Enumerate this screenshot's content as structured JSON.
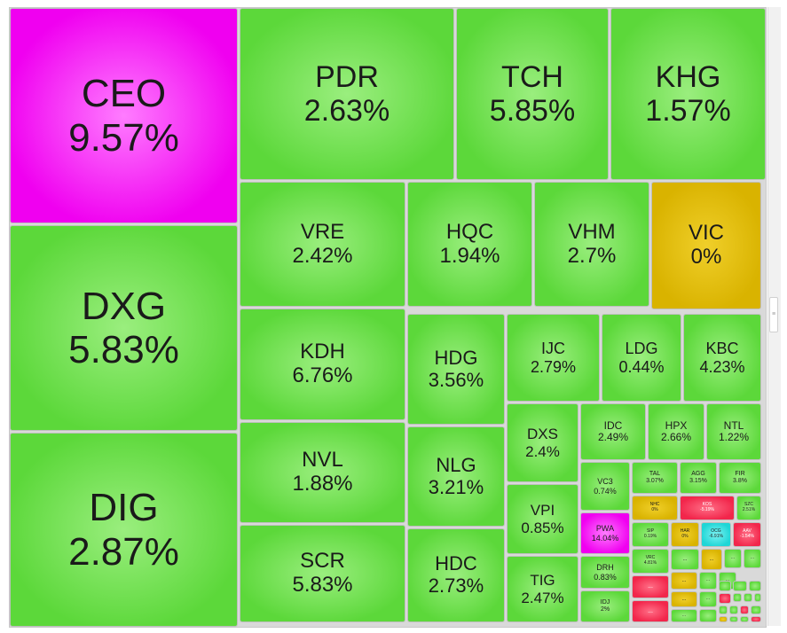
{
  "colors": {
    "up": "#5cd83a",
    "up_center": "#9aee7e",
    "ceiling": "#f000f0",
    "ceiling_center": "#ff7cff",
    "ref": "#d9b300",
    "ref_center": "#f0cf2a",
    "down": "#f2264b",
    "down_center": "#ff6e86",
    "floor": "#1fd6d6",
    "floor_center": "#7cf2f2"
  },
  "chart_data": {
    "type": "treemap",
    "tiles": [
      {
        "ticker": "CEO",
        "change": "9.57%",
        "value": 9.57,
        "status": "ceiling"
      },
      {
        "ticker": "DXG",
        "change": "5.83%",
        "value": 5.83,
        "status": "up"
      },
      {
        "ticker": "DIG",
        "change": "2.87%",
        "value": 2.87,
        "status": "up"
      },
      {
        "ticker": "PDR",
        "change": "2.63%",
        "value": 2.63,
        "status": "up"
      },
      {
        "ticker": "TCH",
        "change": "5.85%",
        "value": 5.85,
        "status": "up"
      },
      {
        "ticker": "KHG",
        "change": "1.57%",
        "value": 1.57,
        "status": "up"
      },
      {
        "ticker": "VRE",
        "change": "2.42%",
        "value": 2.42,
        "status": "up"
      },
      {
        "ticker": "HQC",
        "change": "1.94%",
        "value": 1.94,
        "status": "up"
      },
      {
        "ticker": "VHM",
        "change": "2.7%",
        "value": 2.7,
        "status": "up"
      },
      {
        "ticker": "VIC",
        "change": "0%",
        "value": 0,
        "status": "ref"
      },
      {
        "ticker": "KDH",
        "change": "6.76%",
        "value": 6.76,
        "status": "up"
      },
      {
        "ticker": "HDG",
        "change": "3.56%",
        "value": 3.56,
        "status": "up"
      },
      {
        "ticker": "IJC",
        "change": "2.79%",
        "value": 2.79,
        "status": "up"
      },
      {
        "ticker": "LDG",
        "change": "0.44%",
        "value": 0.44,
        "status": "up"
      },
      {
        "ticker": "KBC",
        "change": "4.23%",
        "value": 4.23,
        "status": "up"
      },
      {
        "ticker": "NVL",
        "change": "1.88%",
        "value": 1.88,
        "status": "up"
      },
      {
        "ticker": "NLG",
        "change": "3.21%",
        "value": 3.21,
        "status": "up"
      },
      {
        "ticker": "DXS",
        "change": "2.4%",
        "value": 2.4,
        "status": "up"
      },
      {
        "ticker": "IDC",
        "change": "2.49%",
        "value": 2.49,
        "status": "up"
      },
      {
        "ticker": "HPX",
        "change": "2.66%",
        "value": 2.66,
        "status": "up"
      },
      {
        "ticker": "NTL",
        "change": "1.22%",
        "value": 1.22,
        "status": "up"
      },
      {
        "ticker": "VC3",
        "change": "0.74%",
        "value": 0.74,
        "status": "up"
      },
      {
        "ticker": "TAL",
        "change": "3.07%",
        "value": 3.07,
        "status": "up"
      },
      {
        "ticker": "AGG",
        "change": "3.15%",
        "value": 3.15,
        "status": "up"
      },
      {
        "ticker": "FIR",
        "change": "3.8%",
        "value": 3.8,
        "status": "up"
      },
      {
        "ticker": "NHC",
        "change": "0%",
        "value": 0,
        "status": "ref"
      },
      {
        "ticker": "KOS",
        "change": "-5.19%",
        "value": -5.19,
        "status": "down"
      },
      {
        "ticker": "SZC",
        "change": "2.51%",
        "value": 2.51,
        "status": "up"
      },
      {
        "ticker": "SCR",
        "change": "5.83%",
        "value": 5.83,
        "status": "up"
      },
      {
        "ticker": "HDC",
        "change": "2.73%",
        "value": 2.73,
        "status": "up"
      },
      {
        "ticker": "VPI",
        "change": "0.85%",
        "value": 0.85,
        "status": "up"
      },
      {
        "ticker": "PWA",
        "change": "14.04%",
        "value": 14.04,
        "status": "ceiling"
      },
      {
        "ticker": "SIP",
        "change": "0.19%",
        "value": 0.19,
        "status": "up"
      },
      {
        "ticker": "HAR",
        "change": "0%",
        "value": 0,
        "status": "ref"
      },
      {
        "ticker": "OCG",
        "change": "-6.91%",
        "value": -6.91,
        "status": "floor"
      },
      {
        "ticker": "AAV",
        "change": "-1.54%",
        "value": -1.54,
        "status": "down"
      },
      {
        "ticker": "TIG",
        "change": "2.47%",
        "value": 2.47,
        "status": "up"
      },
      {
        "ticker": "DRH",
        "change": "0.83%",
        "value": 0.83,
        "status": "up"
      },
      {
        "ticker": "VRC",
        "change": "4.81%",
        "value": 4.81,
        "status": "up"
      },
      {
        "ticker": "IDJ",
        "change": "2%",
        "value": 2,
        "status": "up"
      },
      {
        "ticker": "",
        "change": "...",
        "status": "up"
      },
      {
        "ticker": "",
        "change": "...",
        "status": "ref"
      },
      {
        "ticker": "",
        "change": "...",
        "status": "up"
      },
      {
        "ticker": "",
        "change": "...",
        "status": "up"
      },
      {
        "ticker": "",
        "change": "...",
        "status": "down"
      },
      {
        "ticker": "",
        "change": "...",
        "status": "ref"
      },
      {
        "ticker": "",
        "change": "...",
        "status": "up"
      },
      {
        "ticker": "",
        "change": "...",
        "status": "up"
      },
      {
        "ticker": "",
        "change": "...",
        "status": "down"
      },
      {
        "ticker": "",
        "change": "...",
        "status": "ref"
      },
      {
        "ticker": "",
        "change": "...",
        "status": "up"
      },
      {
        "ticker": "",
        "change": "...",
        "status": "up"
      },
      {
        "ticker": "",
        "change": "",
        "status": "up"
      },
      {
        "ticker": "",
        "change": "",
        "status": "up"
      },
      {
        "ticker": "",
        "change": "",
        "status": "up"
      },
      {
        "ticker": "",
        "change": "",
        "status": "up"
      },
      {
        "ticker": "",
        "change": "",
        "status": "down"
      },
      {
        "ticker": "",
        "change": "",
        "status": "up"
      },
      {
        "ticker": "",
        "change": "",
        "status": "up"
      },
      {
        "ticker": "",
        "change": "",
        "status": "up"
      },
      {
        "ticker": "",
        "change": "",
        "status": "up"
      },
      {
        "ticker": "",
        "change": "",
        "status": "up"
      },
      {
        "ticker": "",
        "change": "",
        "status": "down"
      },
      {
        "ticker": "",
        "change": "",
        "status": "up"
      },
      {
        "ticker": "",
        "change": "",
        "status": "ref"
      },
      {
        "ticker": "",
        "change": "",
        "status": "up"
      },
      {
        "ticker": "",
        "change": "",
        "status": "up"
      },
      {
        "ticker": "",
        "change": "",
        "status": "down"
      },
      {
        "ticker": "",
        "change": "",
        "status": "up"
      },
      {
        "ticker": "",
        "change": "",
        "status": "up"
      },
      {
        "ticker": "",
        "change": "",
        "status": "up"
      },
      {
        "ticker": "",
        "change": "",
        "status": "up"
      }
    ]
  }
}
